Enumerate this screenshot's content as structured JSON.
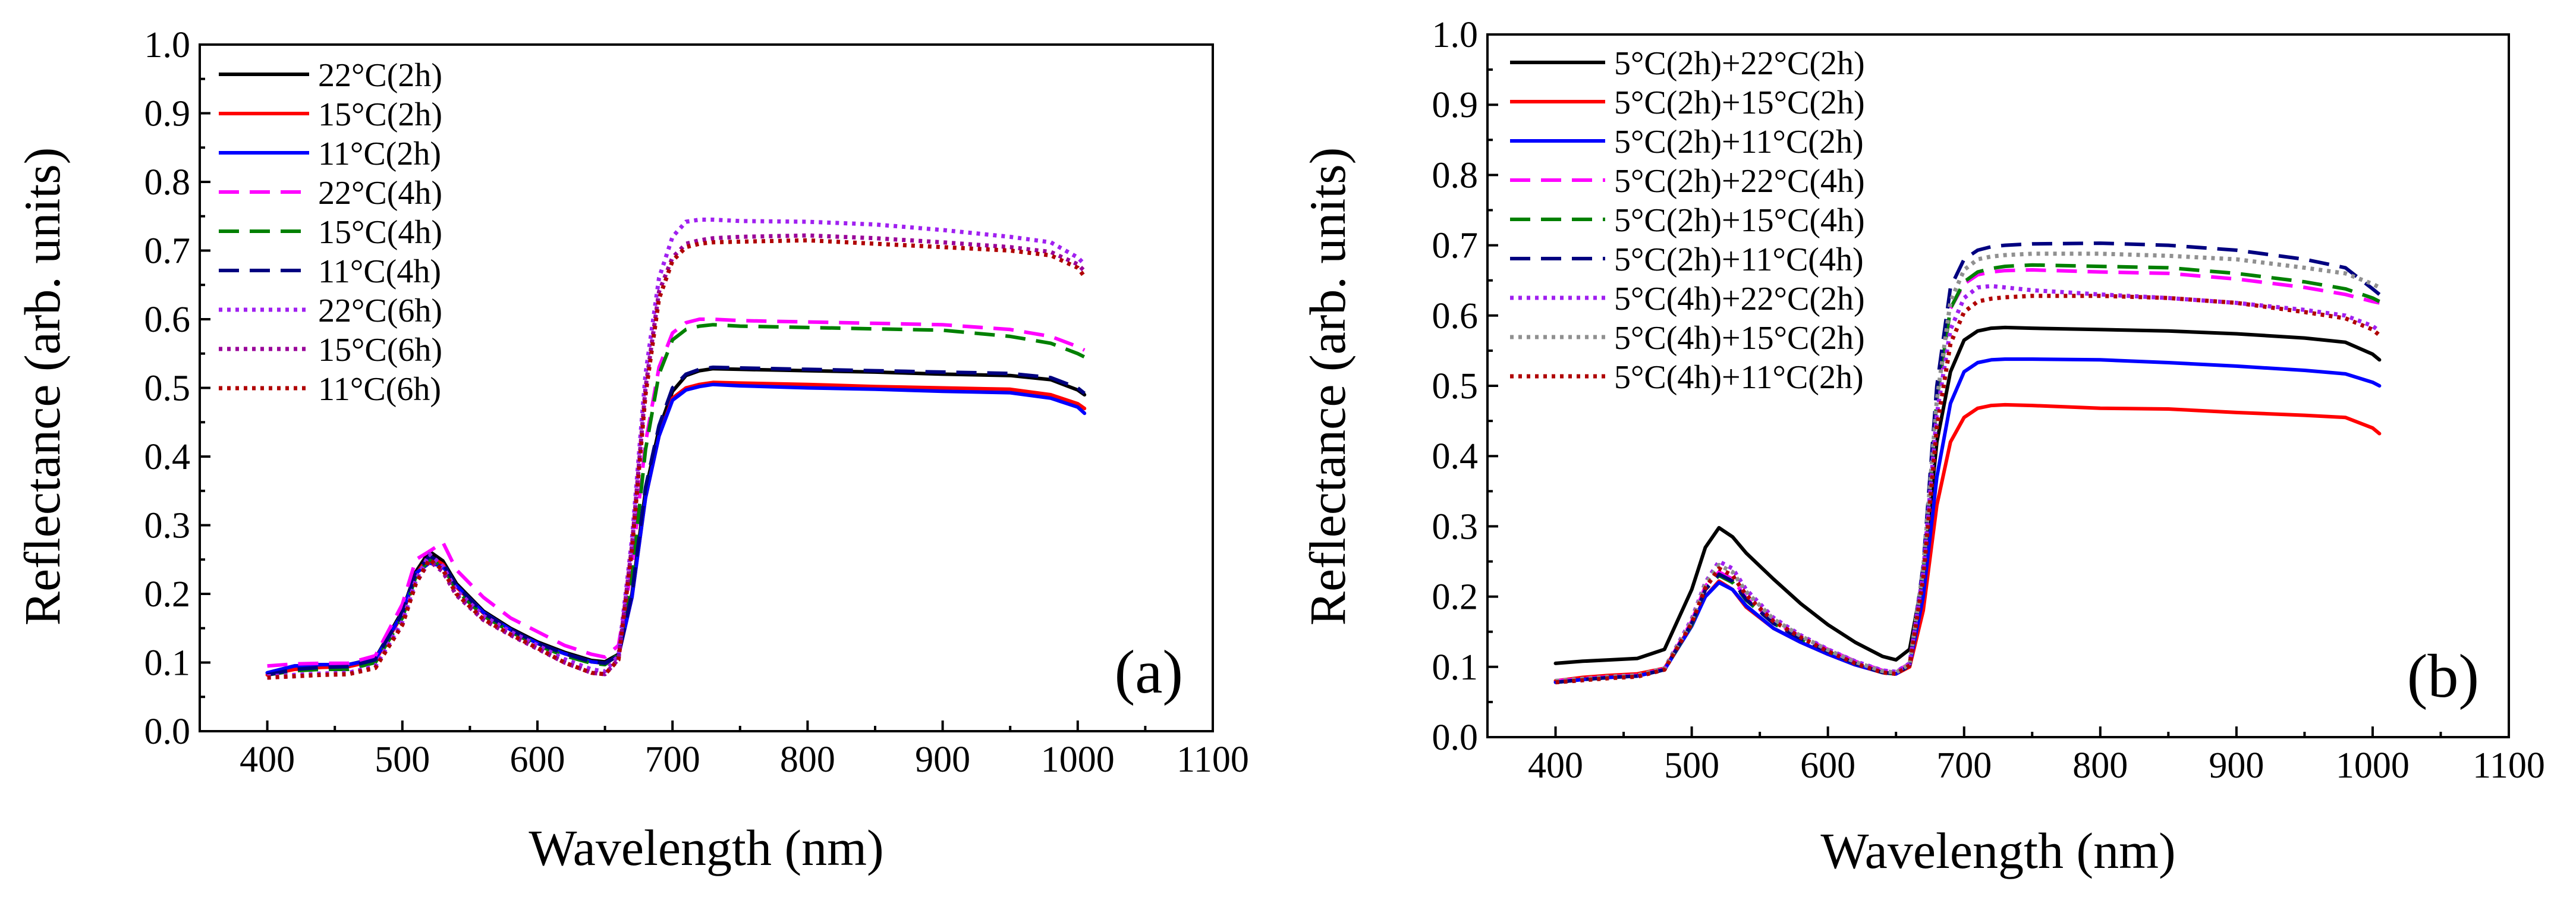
{
  "chart_data": [
    {
      "type": "line",
      "panel_label": "(a)",
      "xlabel": "Wavelength (nm)",
      "ylabel": "Reflectance (arb. units)",
      "xlim": [
        350,
        1100
      ],
      "ylim": [
        0.0,
        1.0
      ],
      "xticks": [
        400,
        500,
        600,
        700,
        800,
        900,
        1000,
        1100
      ],
      "yticks": [
        "0.0",
        "0.1",
        "0.2",
        "0.3",
        "0.4",
        "0.5",
        "0.6",
        "0.7",
        "0.8",
        "0.9",
        "1.0"
      ],
      "legend_position": "top-left",
      "x": [
        400,
        420,
        440,
        460,
        480,
        500,
        510,
        520,
        530,
        540,
        560,
        580,
        600,
        620,
        640,
        650,
        660,
        670,
        680,
        690,
        700,
        710,
        720,
        730,
        750,
        800,
        850,
        900,
        950,
        980,
        1000,
        1005
      ],
      "series": [
        {
          "name": "22°C(2h)",
          "color": "#000000",
          "style": "solid",
          "values": [
            0.085,
            0.095,
            0.097,
            0.097,
            0.106,
            0.175,
            0.232,
            0.262,
            0.248,
            0.215,
            0.175,
            0.15,
            0.13,
            0.115,
            0.103,
            0.101,
            0.112,
            0.2,
            0.35,
            0.44,
            0.495,
            0.518,
            0.525,
            0.528,
            0.527,
            0.525,
            0.523,
            0.52,
            0.518,
            0.512,
            0.497,
            0.49
          ]
        },
        {
          "name": "15°C(2h)",
          "color": "#ff0000",
          "style": "solid",
          "values": [
            0.082,
            0.09,
            0.093,
            0.094,
            0.103,
            0.17,
            0.228,
            0.255,
            0.243,
            0.21,
            0.172,
            0.148,
            0.128,
            0.113,
            0.101,
            0.099,
            0.11,
            0.195,
            0.34,
            0.43,
            0.485,
            0.5,
            0.505,
            0.508,
            0.507,
            0.505,
            0.502,
            0.5,
            0.498,
            0.49,
            0.477,
            0.47
          ]
        },
        {
          "name": "11°C(2h)",
          "color": "#0000ff",
          "style": "solid",
          "values": [
            0.085,
            0.095,
            0.097,
            0.097,
            0.105,
            0.172,
            0.23,
            0.245,
            0.24,
            0.212,
            0.173,
            0.148,
            0.128,
            0.113,
            0.101,
            0.099,
            0.11,
            0.195,
            0.34,
            0.43,
            0.482,
            0.497,
            0.502,
            0.505,
            0.503,
            0.5,
            0.498,
            0.495,
            0.493,
            0.485,
            0.472,
            0.463
          ]
        },
        {
          "name": "22°C(4h)",
          "color": "#ff00ff",
          "style": "dashed",
          "values": [
            0.095,
            0.098,
            0.099,
            0.099,
            0.11,
            0.185,
            0.25,
            0.262,
            0.275,
            0.235,
            0.195,
            0.165,
            0.145,
            0.125,
            0.112,
            0.108,
            0.125,
            0.24,
            0.42,
            0.53,
            0.58,
            0.595,
            0.6,
            0.6,
            0.598,
            0.596,
            0.594,
            0.592,
            0.585,
            0.575,
            0.56,
            0.555
          ]
        },
        {
          "name": "15°C(4h)",
          "color": "#008000",
          "style": "dashed",
          "values": [
            0.082,
            0.088,
            0.09,
            0.09,
            0.1,
            0.165,
            0.225,
            0.25,
            0.24,
            0.205,
            0.168,
            0.145,
            0.125,
            0.11,
            0.099,
            0.097,
            0.112,
            0.225,
            0.41,
            0.52,
            0.57,
            0.585,
            0.59,
            0.592,
            0.59,
            0.588,
            0.586,
            0.584,
            0.575,
            0.565,
            0.55,
            0.545
          ]
        },
        {
          "name": "11°C(4h)",
          "color": "#000080",
          "style": "dashed",
          "values": [
            0.082,
            0.09,
            0.093,
            0.094,
            0.104,
            0.172,
            0.23,
            0.255,
            0.245,
            0.212,
            0.172,
            0.148,
            0.128,
            0.113,
            0.101,
            0.099,
            0.11,
            0.2,
            0.355,
            0.445,
            0.5,
            0.52,
            0.527,
            0.53,
            0.529,
            0.527,
            0.525,
            0.523,
            0.521,
            0.515,
            0.5,
            0.492
          ]
        },
        {
          "name": "22°C(6h)",
          "color": "#a020f0",
          "style": "dotted",
          "values": [
            0.08,
            0.082,
            0.084,
            0.085,
            0.095,
            0.16,
            0.22,
            0.258,
            0.24,
            0.205,
            0.168,
            0.145,
            0.125,
            0.105,
            0.09,
            0.087,
            0.11,
            0.28,
            0.52,
            0.66,
            0.72,
            0.742,
            0.745,
            0.745,
            0.743,
            0.742,
            0.738,
            0.73,
            0.72,
            0.712,
            0.69,
            0.68
          ]
        },
        {
          "name": "15°C(6h)",
          "color": "#990099",
          "style": "dotted",
          "values": [
            0.078,
            0.08,
            0.082,
            0.083,
            0.093,
            0.155,
            0.215,
            0.248,
            0.232,
            0.198,
            0.162,
            0.14,
            0.12,
            0.1,
            0.085,
            0.083,
            0.105,
            0.27,
            0.5,
            0.64,
            0.69,
            0.71,
            0.715,
            0.718,
            0.72,
            0.722,
            0.718,
            0.712,
            0.705,
            0.698,
            0.68,
            0.67
          ]
        },
        {
          "name": "11°C(6h)",
          "color": "#b00000",
          "style": "dotted",
          "values": [
            0.078,
            0.08,
            0.082,
            0.083,
            0.092,
            0.155,
            0.215,
            0.25,
            0.235,
            0.2,
            0.163,
            0.141,
            0.121,
            0.1,
            0.085,
            0.083,
            0.104,
            0.265,
            0.49,
            0.63,
            0.685,
            0.705,
            0.71,
            0.712,
            0.713,
            0.715,
            0.71,
            0.705,
            0.7,
            0.693,
            0.675,
            0.662
          ]
        }
      ]
    },
    {
      "type": "line",
      "panel_label": "(b)",
      "xlabel": "Wavelength (nm)",
      "ylabel": "Reflectance (arb. units)",
      "xlim": [
        350,
        1100
      ],
      "ylim": [
        0.0,
        1.0
      ],
      "xticks": [
        400,
        500,
        600,
        700,
        800,
        900,
        1000,
        1100
      ],
      "yticks": [
        "0.0",
        "0.1",
        "0.2",
        "0.3",
        "0.4",
        "0.5",
        "0.6",
        "0.7",
        "0.8",
        "0.9",
        "1.0"
      ],
      "legend_position": "top-left",
      "x": [
        400,
        420,
        440,
        460,
        480,
        500,
        510,
        520,
        530,
        540,
        560,
        580,
        600,
        620,
        640,
        650,
        660,
        670,
        680,
        690,
        700,
        710,
        720,
        730,
        750,
        800,
        850,
        900,
        950,
        980,
        1000,
        1005
      ],
      "series": [
        {
          "name": "5°C(2h)+22°C(2h)",
          "color": "#000000",
          "style": "solid",
          "values": [
            0.105,
            0.108,
            0.11,
            0.112,
            0.125,
            0.21,
            0.27,
            0.298,
            0.285,
            0.262,
            0.225,
            0.19,
            0.16,
            0.135,
            0.115,
            0.11,
            0.125,
            0.23,
            0.42,
            0.52,
            0.565,
            0.578,
            0.582,
            0.583,
            0.582,
            0.58,
            0.578,
            0.574,
            0.568,
            0.562,
            0.545,
            0.537
          ]
        },
        {
          "name": "5°C(2h)+15°C(2h)",
          "color": "#ff0000",
          "style": "solid",
          "values": [
            0.08,
            0.085,
            0.088,
            0.09,
            0.098,
            0.16,
            0.2,
            0.222,
            0.21,
            0.185,
            0.155,
            0.135,
            0.118,
            0.103,
            0.092,
            0.09,
            0.1,
            0.18,
            0.33,
            0.42,
            0.455,
            0.468,
            0.472,
            0.473,
            0.472,
            0.468,
            0.467,
            0.462,
            0.458,
            0.455,
            0.44,
            0.432
          ]
        },
        {
          "name": "5°C(2h)+11°C(2h)",
          "color": "#0000ff",
          "style": "solid",
          "values": [
            0.078,
            0.082,
            0.085,
            0.087,
            0.096,
            0.158,
            0.2,
            0.22,
            0.21,
            0.187,
            0.155,
            0.135,
            0.118,
            0.103,
            0.092,
            0.09,
            0.102,
            0.2,
            0.37,
            0.475,
            0.52,
            0.533,
            0.537,
            0.538,
            0.538,
            0.537,
            0.533,
            0.528,
            0.522,
            0.517,
            0.505,
            0.5
          ]
        },
        {
          "name": "5°C(2h)+22°C(4h)",
          "color": "#ff00ff",
          "style": "dashed",
          "values": [
            0.08,
            0.083,
            0.086,
            0.088,
            0.097,
            0.165,
            0.215,
            0.235,
            0.225,
            0.198,
            0.165,
            0.143,
            0.125,
            0.108,
            0.095,
            0.093,
            0.105,
            0.24,
            0.48,
            0.61,
            0.645,
            0.658,
            0.662,
            0.664,
            0.665,
            0.662,
            0.66,
            0.652,
            0.64,
            0.63,
            0.62,
            0.618
          ]
        },
        {
          "name": "5°C(2h)+15°C(4h)",
          "color": "#008000",
          "style": "dashed",
          "values": [
            0.078,
            0.082,
            0.085,
            0.087,
            0.096,
            0.16,
            0.21,
            0.23,
            0.22,
            0.195,
            0.162,
            0.14,
            0.122,
            0.105,
            0.092,
            0.09,
            0.102,
            0.235,
            0.48,
            0.61,
            0.648,
            0.662,
            0.667,
            0.67,
            0.672,
            0.67,
            0.668,
            0.66,
            0.648,
            0.638,
            0.625,
            0.62
          ]
        },
        {
          "name": "5°C(2h)+11°C(4h)",
          "color": "#000080",
          "style": "dashed",
          "values": [
            0.078,
            0.082,
            0.085,
            0.087,
            0.096,
            0.162,
            0.21,
            0.232,
            0.222,
            0.196,
            0.162,
            0.14,
            0.122,
            0.105,
            0.092,
            0.09,
            0.102,
            0.245,
            0.5,
            0.64,
            0.68,
            0.693,
            0.698,
            0.7,
            0.702,
            0.703,
            0.7,
            0.693,
            0.68,
            0.668,
            0.638,
            0.63
          ]
        },
        {
          "name": "5°C(4h)+22°C(2h)",
          "color": "#a020f0",
          "style": "dotted",
          "values": [
            0.08,
            0.083,
            0.086,
            0.088,
            0.098,
            0.168,
            0.22,
            0.25,
            0.24,
            0.21,
            0.17,
            0.145,
            0.125,
            0.108,
            0.095,
            0.093,
            0.105,
            0.235,
            0.46,
            0.58,
            0.625,
            0.64,
            0.642,
            0.64,
            0.636,
            0.63,
            0.625,
            0.618,
            0.608,
            0.6,
            0.585,
            0.578
          ]
        },
        {
          "name": "5°C(4h)+15°C(2h)",
          "color": "#909090",
          "style": "dotted",
          "values": [
            0.08,
            0.083,
            0.086,
            0.088,
            0.098,
            0.165,
            0.218,
            0.245,
            0.235,
            0.207,
            0.168,
            0.144,
            0.124,
            0.107,
            0.094,
            0.092,
            0.104,
            0.24,
            0.48,
            0.62,
            0.665,
            0.68,
            0.684,
            0.686,
            0.688,
            0.688,
            0.685,
            0.68,
            0.668,
            0.66,
            0.645,
            0.64
          ]
        },
        {
          "name": "5°C(4h)+11°C(2h)",
          "color": "#b00000",
          "style": "dotted",
          "values": [
            0.078,
            0.081,
            0.084,
            0.086,
            0.096,
            0.162,
            0.212,
            0.24,
            0.23,
            0.202,
            0.165,
            0.142,
            0.122,
            0.105,
            0.092,
            0.09,
            0.102,
            0.225,
            0.44,
            0.56,
            0.605,
            0.62,
            0.624,
            0.626,
            0.628,
            0.628,
            0.625,
            0.618,
            0.605,
            0.596,
            0.58,
            0.572
          ]
        }
      ]
    }
  ]
}
